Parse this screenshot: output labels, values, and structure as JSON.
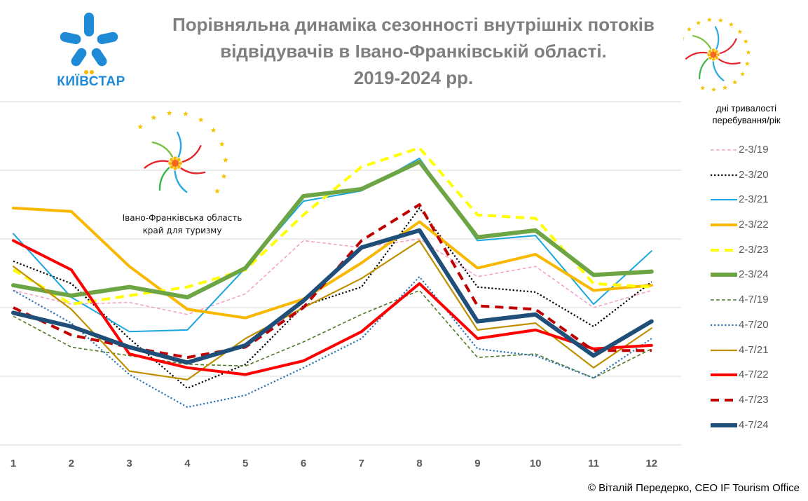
{
  "title": {
    "line1": "Порівняльна динаміка сезонності внутрішніх потоків",
    "line2": "відвідувачів в Івано-Франківській області.",
    "line3": "2019-2024 рр."
  },
  "logo": {
    "kyivstar_text": "КИЇВСТАР"
  },
  "region_caption": {
    "line1": "Івано-Франківська область",
    "line2": "край для туризму"
  },
  "legend_title": {
    "line1": "дні тривалості",
    "line2": "перебування/рік"
  },
  "copyright": "© Віталій Передерко, CEO IF Tourism Office",
  "chart_data": {
    "type": "line",
    "categories": [
      "1",
      "2",
      "3",
      "4",
      "5",
      "6",
      "7",
      "8",
      "9",
      "10",
      "11",
      "12"
    ],
    "ylim": [
      0,
      100
    ],
    "grid": true,
    "legend_placement": "right",
    "series": [
      {
        "name": "2-3/19",
        "color": "#f4a3c8",
        "dash": "dash",
        "width": 1.6,
        "values": [
          45,
          41,
          41.5,
          38,
          44,
          59.5,
          57.5,
          60,
          49,
          52,
          40,
          45
        ]
      },
      {
        "name": "2-3/20",
        "color": "#000000",
        "dash": "dot",
        "width": 2.2,
        "values": [
          53.5,
          47,
          31,
          16.5,
          23.5,
          40.5,
          46,
          69,
          46,
          44.5,
          34.5,
          47.5
        ]
      },
      {
        "name": "2-3/21",
        "color": "#19a6e0",
        "dash": "solid",
        "width": 2,
        "values": [
          61.5,
          43,
          33,
          33.5,
          51.5,
          71,
          74,
          83.5,
          59.5,
          61,
          41,
          56.5
        ]
      },
      {
        "name": "2-3/22",
        "color": "#f9b800",
        "dash": "solid",
        "width": 4,
        "values": [
          69,
          68,
          52,
          39.5,
          37,
          42.5,
          53,
          65,
          51.5,
          55.5,
          45,
          46.5
        ]
      },
      {
        "name": "2-3/23",
        "color": "#ffff00",
        "dash": "dash",
        "width": 4,
        "values": [
          51,
          41,
          43.5,
          46,
          51,
          67,
          81,
          86.5,
          67,
          66,
          47,
          46
        ]
      },
      {
        "name": "2-3/24",
        "color": "#6ea544",
        "dash": "solid",
        "width": 6,
        "values": [
          46.5,
          43.5,
          46,
          43,
          51.5,
          72.5,
          74.5,
          82.5,
          60.5,
          62.5,
          49.5,
          50.5
        ]
      },
      {
        "name": "4-7/19",
        "color": "#4f7a28",
        "dash": "dash",
        "width": 1.6,
        "values": [
          37.5,
          28.5,
          26,
          23.5,
          23,
          30,
          38,
          45,
          25.5,
          26.5,
          19.5,
          28
        ]
      },
      {
        "name": "4-7/20",
        "color": "#2e75b6",
        "dash": "dot",
        "width": 2.2,
        "values": [
          45,
          35.5,
          20.5,
          11,
          14.5,
          22.5,
          31,
          49,
          28,
          26,
          19.5,
          31
        ]
      },
      {
        "name": "4-7/21",
        "color": "#bf9000",
        "dash": "solid",
        "width": 2.2,
        "values": [
          52,
          39.5,
          21.5,
          19,
          31,
          40,
          48.5,
          59.5,
          33.5,
          35.5,
          22.5,
          34
        ]
      },
      {
        "name": "4-7/22",
        "color": "#ff0000",
        "dash": "solid",
        "width": 4,
        "values": [
          59.5,
          51,
          26.5,
          22.5,
          20.5,
          24.5,
          33,
          47,
          31,
          33.5,
          28,
          29
        ]
      },
      {
        "name": "4-7/23",
        "color": "#c00000",
        "dash": "dash",
        "width": 4,
        "values": [
          40,
          32,
          28.5,
          25.5,
          28.5,
          40,
          59.5,
          70,
          40.5,
          39.5,
          27.5,
          27.5
        ]
      },
      {
        "name": "4-7/24",
        "color": "#1f4e79",
        "dash": "solid",
        "width": 6,
        "values": [
          38.5,
          34.5,
          28.5,
          24,
          29,
          42,
          57.5,
          62.5,
          36,
          38,
          26,
          36
        ]
      }
    ]
  }
}
